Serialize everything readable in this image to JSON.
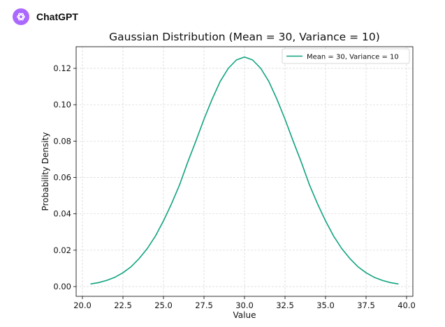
{
  "app": {
    "name": "ChatGPT",
    "logo_icon": "openai-logo-icon",
    "logo_color": "#ab68ff"
  },
  "chart_data": {
    "type": "line",
    "title": "Gaussian Distribution (Mean = 30, Variance = 10)",
    "xlabel": "Value",
    "ylabel": "Probability Density",
    "xlim": [
      20.0,
      40.0
    ],
    "ylim": [
      0.0,
      0.13
    ],
    "xticks": [
      20.0,
      22.5,
      25.0,
      27.5,
      30.0,
      32.5,
      35.0,
      37.5,
      40.0
    ],
    "xtick_labels": [
      "20.0",
      "22.5",
      "25.0",
      "27.5",
      "30.0",
      "32.5",
      "35.0",
      "37.5",
      "40.0"
    ],
    "yticks": [
      0.0,
      0.02,
      0.04,
      0.06,
      0.08,
      0.1,
      0.12
    ],
    "ytick_labels": [
      "0.00",
      "0.02",
      "0.04",
      "0.06",
      "0.08",
      "0.10",
      "0.12"
    ],
    "grid": true,
    "legend_position": "top-right",
    "series": [
      {
        "name": "Mean = 30, Variance = 10",
        "color": "#10a37f",
        "x": [
          20.5,
          21.0,
          21.5,
          22.0,
          22.5,
          23.0,
          23.5,
          24.0,
          24.5,
          25.0,
          25.5,
          26.0,
          26.5,
          27.0,
          27.5,
          28.0,
          28.5,
          29.0,
          29.5,
          30.0,
          30.5,
          31.0,
          31.5,
          32.0,
          32.5,
          33.0,
          33.5,
          34.0,
          34.5,
          35.0,
          35.5,
          36.0,
          36.5,
          37.0,
          37.5,
          38.0,
          38.5,
          39.0,
          39.5
        ],
        "y": [
          0.0014,
          0.0022,
          0.0034,
          0.0051,
          0.0076,
          0.0109,
          0.0154,
          0.0209,
          0.0277,
          0.0361,
          0.0456,
          0.0561,
          0.0685,
          0.08,
          0.092,
          0.103,
          0.1128,
          0.12,
          0.1246,
          0.1262,
          0.1246,
          0.12,
          0.1128,
          0.103,
          0.092,
          0.08,
          0.0685,
          0.0561,
          0.0456,
          0.0361,
          0.0277,
          0.0209,
          0.0154,
          0.0109,
          0.0076,
          0.0051,
          0.0034,
          0.0022,
          0.0014
        ]
      }
    ]
  }
}
